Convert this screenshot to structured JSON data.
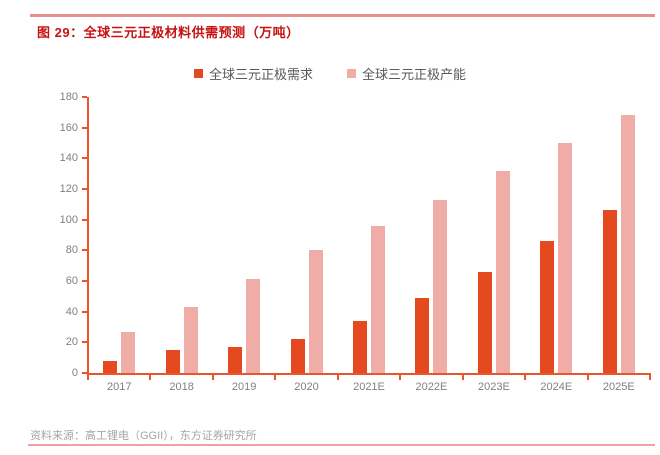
{
  "figure": {
    "title": "图 29：全球三元正极材料供需预测（万吨）",
    "source": "资料来源：高工锂电（GGII），东方证券研究所"
  },
  "colors": {
    "demand_bar": "#e5491f",
    "capacity_bar": "#f0aca6",
    "axis": "#ea562c",
    "title_red": "#c61212",
    "top_rule": "#e88f8f",
    "bottom_rule": "#f0a2a2",
    "tick_label": "#808080",
    "legend_text": "#595959",
    "source_text": "#a6a6a6"
  },
  "chart_data": {
    "type": "bar",
    "title": "全球三元正极材料供需预测（万吨）",
    "categories": [
      "2017",
      "2018",
      "2019",
      "2020",
      "2021E",
      "2022E",
      "2023E",
      "2024E",
      "2025E"
    ],
    "series": [
      {
        "name": "全球三元正极需求",
        "color_key": "demand_bar",
        "values": [
          8,
          15,
          17,
          22,
          34,
          49,
          66,
          86,
          106
        ]
      },
      {
        "name": "全球三元正极产能",
        "color_key": "capacity_bar",
        "values": [
          27,
          43,
          61,
          80,
          96,
          113,
          132,
          150,
          168
        ]
      }
    ],
    "xlabel": "",
    "ylabel": "",
    "ylim": [
      0,
      180
    ],
    "y_ticks": [
      0,
      20,
      40,
      60,
      80,
      100,
      120,
      140,
      160,
      180
    ],
    "grid": "off",
    "legend_position": "top"
  }
}
